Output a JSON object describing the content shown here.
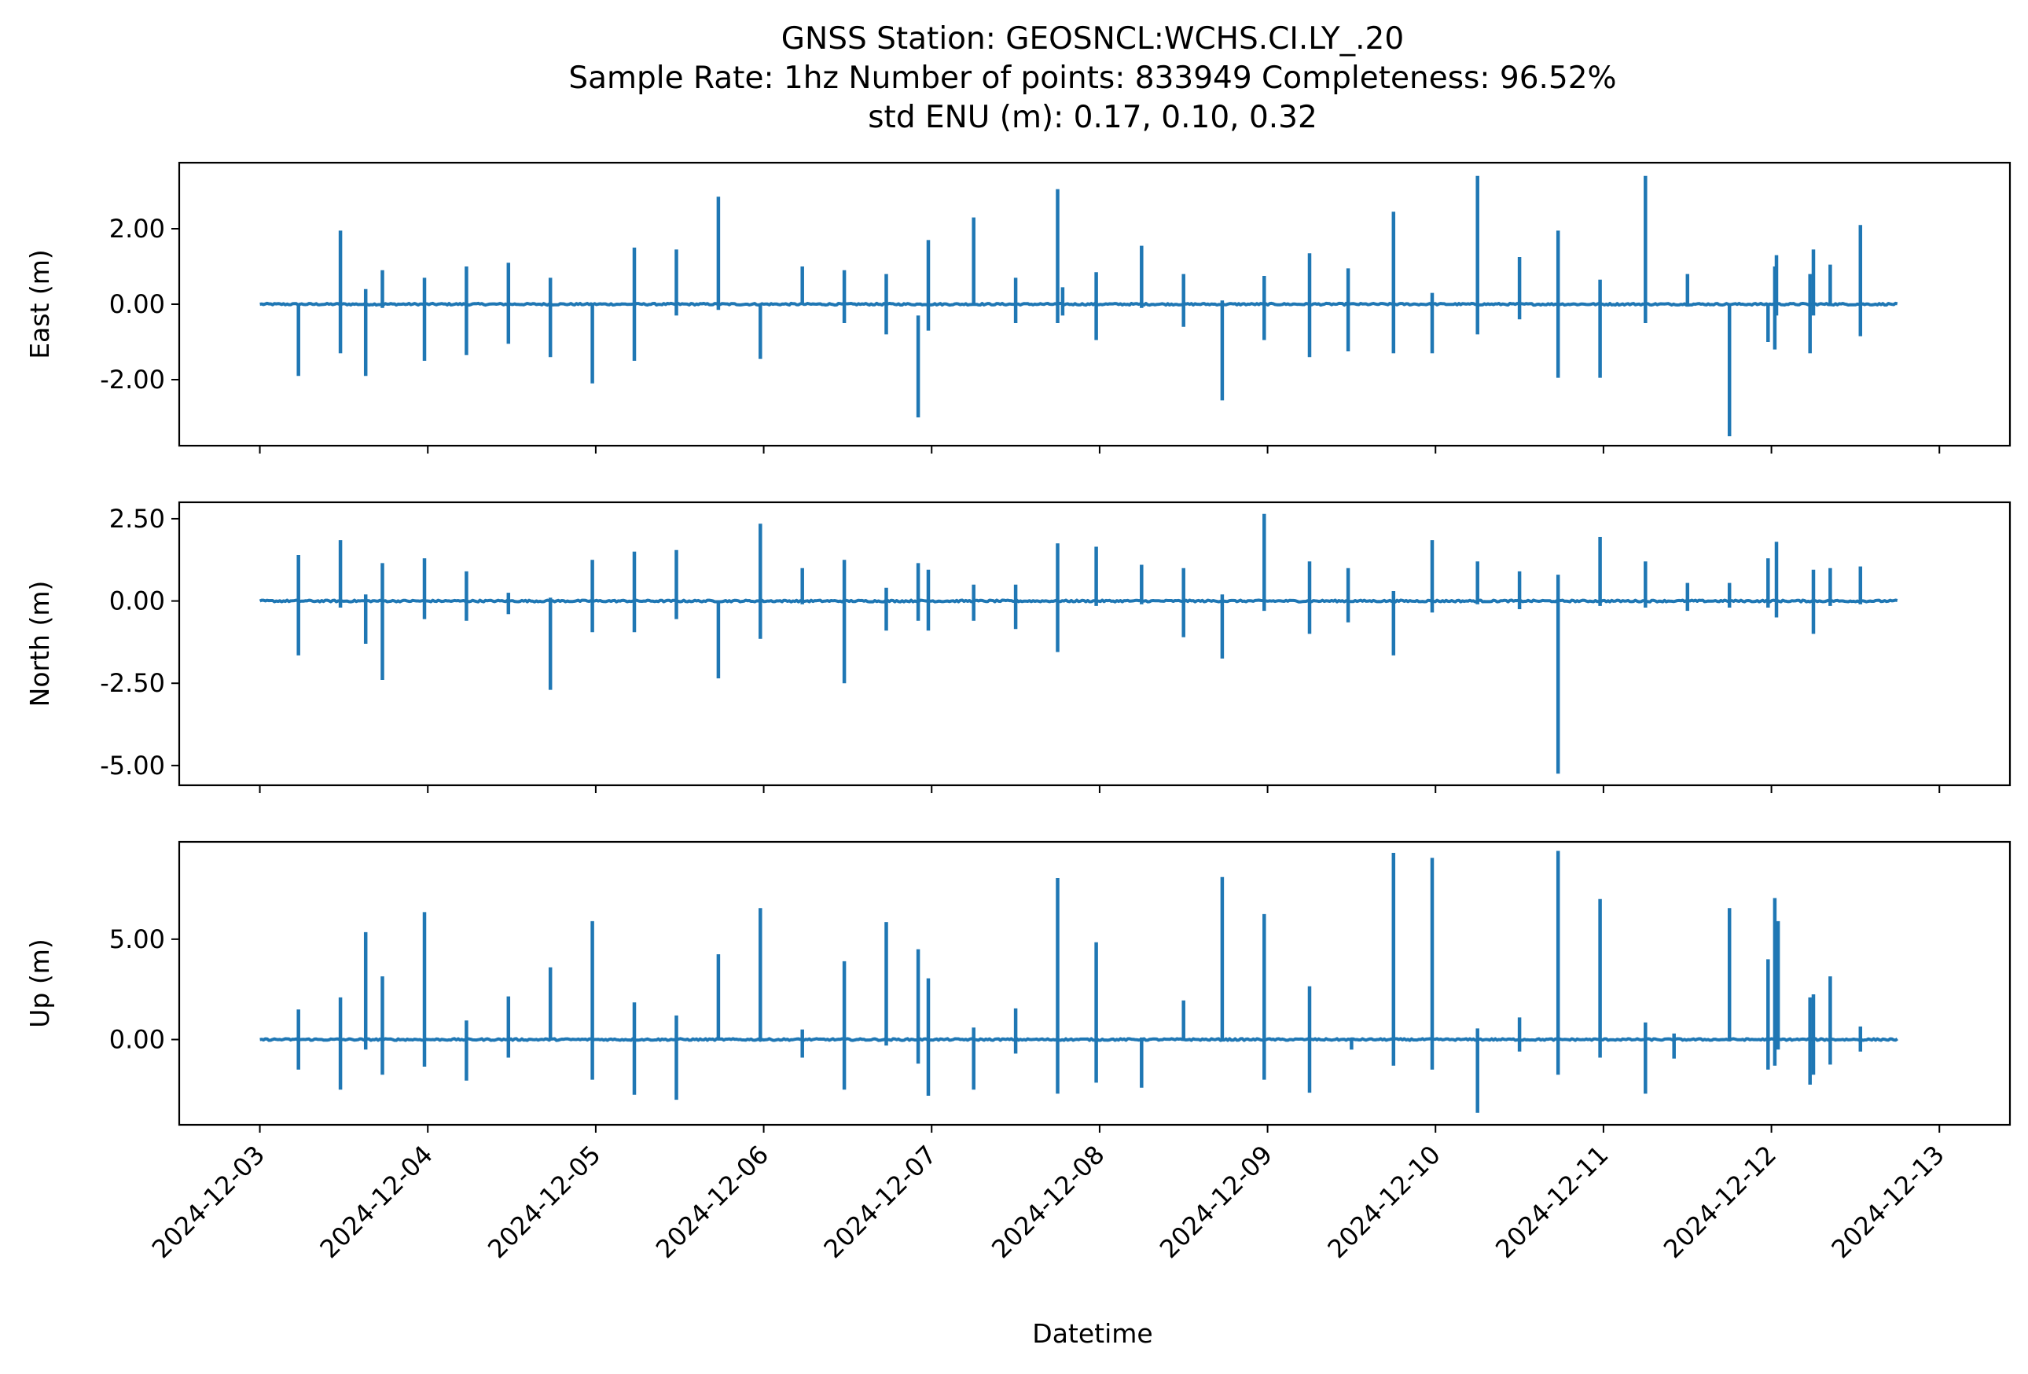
{
  "chart_data": {
    "type": "line",
    "title_lines": [
      "GNSS Station: GEOSNCL:WCHS.CI.LY_.20",
      "Sample Rate: 1hz   Number of points: 833949    Completeness:  96.52%",
      "std ENU (m):  0.17, 0.10, 0.32"
    ],
    "xlabel": "Datetime",
    "x_tick_labels": [
      "2024-12-03",
      "2024-12-04",
      "2024-12-05",
      "2024-12-06",
      "2024-12-07",
      "2024-12-08",
      "2024-12-09",
      "2024-12-10",
      "2024-12-11",
      "2024-12-12",
      "2024-12-13"
    ],
    "x_range_days": [
      -0.48,
      10.42
    ],
    "data_range_days": [
      0.0,
      9.75
    ],
    "line_color": "#1f77b4",
    "panels": [
      {
        "ylabel": "East (m)",
        "ylim": [
          -3.75,
          3.75
        ],
        "y_ticks": [
          2.0,
          0.0,
          -2.0
        ],
        "y_tick_labels": [
          "2.00",
          "0.00",
          "-2.00"
        ],
        "spikes": [
          [
            0.23,
            0.0,
            -1.9
          ],
          [
            0.48,
            1.95,
            -1.3
          ],
          [
            0.63,
            0.4,
            -1.9
          ],
          [
            0.73,
            0.9,
            -0.1
          ],
          [
            0.98,
            0.7,
            -1.5
          ],
          [
            1.23,
            1.0,
            -1.35
          ],
          [
            1.48,
            1.1,
            -1.05
          ],
          [
            1.73,
            0.7,
            -1.4
          ],
          [
            1.98,
            0.0,
            -2.1
          ],
          [
            2.23,
            1.5,
            -1.5
          ],
          [
            2.48,
            1.45,
            -0.3
          ],
          [
            2.73,
            2.85,
            -0.15
          ],
          [
            2.98,
            0.0,
            -1.45
          ],
          [
            3.23,
            1.0,
            0.0
          ],
          [
            3.48,
            0.9,
            -0.5
          ],
          [
            3.73,
            0.8,
            -0.8
          ],
          [
            3.92,
            -0.3,
            -3.0
          ],
          [
            3.98,
            1.7,
            -0.7
          ],
          [
            4.25,
            2.3,
            0.0
          ],
          [
            4.5,
            0.7,
            -0.5
          ],
          [
            4.75,
            3.05,
            -0.5
          ],
          [
            4.78,
            0.45,
            -0.3
          ],
          [
            4.98,
            0.85,
            -0.95
          ],
          [
            5.25,
            1.55,
            -0.1
          ],
          [
            5.5,
            0.8,
            -0.6
          ],
          [
            5.73,
            0.1,
            -2.55
          ],
          [
            5.98,
            0.75,
            -0.95
          ],
          [
            6.25,
            1.35,
            -1.4
          ],
          [
            6.48,
            0.95,
            -1.25
          ],
          [
            6.75,
            2.45,
            -1.3
          ],
          [
            6.98,
            0.3,
            -1.3
          ],
          [
            7.25,
            3.4,
            -0.8
          ],
          [
            7.5,
            1.25,
            -0.4
          ],
          [
            7.73,
            1.95,
            -1.95
          ],
          [
            7.98,
            0.65,
            -1.95
          ],
          [
            8.25,
            3.4,
            -0.5
          ],
          [
            8.5,
            0.8,
            0.0
          ],
          [
            8.75,
            0.0,
            -3.5
          ],
          [
            8.98,
            0.0,
            -1.0
          ],
          [
            9.02,
            1.0,
            -1.2
          ],
          [
            9.03,
            1.3,
            -0.3
          ],
          [
            9.23,
            0.8,
            -1.3
          ],
          [
            9.25,
            1.45,
            -0.3
          ],
          [
            9.35,
            1.05,
            0.0
          ],
          [
            9.53,
            2.1,
            -0.85
          ]
        ]
      },
      {
        "ylabel": "North (m)",
        "ylim": [
          -5.6,
          3.0
        ],
        "y_ticks": [
          2.5,
          0.0,
          -2.5,
          -5.0
        ],
        "y_tick_labels": [
          "2.50",
          "0.00",
          "-2.50",
          "-5.00"
        ],
        "spikes": [
          [
            0.23,
            1.4,
            -1.65
          ],
          [
            0.48,
            1.85,
            -0.2
          ],
          [
            0.63,
            0.2,
            -1.3
          ],
          [
            0.73,
            1.15,
            -2.4
          ],
          [
            0.98,
            1.3,
            -0.55
          ],
          [
            1.23,
            0.9,
            -0.6
          ],
          [
            1.48,
            0.25,
            -0.4
          ],
          [
            1.73,
            0.1,
            -2.7
          ],
          [
            1.98,
            1.25,
            -0.95
          ],
          [
            2.23,
            1.5,
            -0.95
          ],
          [
            2.48,
            1.55,
            -0.55
          ],
          [
            2.73,
            0.0,
            -2.35
          ],
          [
            2.98,
            2.35,
            -1.15
          ],
          [
            3.23,
            1.0,
            -0.1
          ],
          [
            3.48,
            1.25,
            -2.5
          ],
          [
            3.73,
            0.4,
            -0.9
          ],
          [
            3.92,
            1.15,
            -0.6
          ],
          [
            3.98,
            0.95,
            -0.9
          ],
          [
            4.25,
            0.5,
            -0.6
          ],
          [
            4.5,
            0.5,
            -0.85
          ],
          [
            4.75,
            1.75,
            -1.55
          ],
          [
            4.98,
            1.65,
            -0.15
          ],
          [
            5.25,
            1.1,
            -0.1
          ],
          [
            5.5,
            1.0,
            -1.1
          ],
          [
            5.73,
            0.2,
            -1.75
          ],
          [
            5.98,
            2.65,
            -0.3
          ],
          [
            6.25,
            1.2,
            -1.0
          ],
          [
            6.48,
            1.0,
            -0.65
          ],
          [
            6.75,
            0.3,
            -1.65
          ],
          [
            6.98,
            1.85,
            -0.35
          ],
          [
            7.25,
            1.2,
            -0.1
          ],
          [
            7.5,
            0.9,
            -0.25
          ],
          [
            7.73,
            0.8,
            -5.25
          ],
          [
            7.98,
            1.95,
            -0.15
          ],
          [
            8.25,
            1.2,
            -0.2
          ],
          [
            8.5,
            0.55,
            -0.3
          ],
          [
            8.75,
            0.55,
            -0.2
          ],
          [
            8.98,
            1.3,
            -0.2
          ],
          [
            9.03,
            1.8,
            -0.5
          ],
          [
            9.25,
            0.95,
            -1.0
          ],
          [
            9.35,
            1.0,
            -0.15
          ],
          [
            9.53,
            1.05,
            -0.1
          ]
        ]
      },
      {
        "ylabel": "Up (m)",
        "ylim": [
          -4.25,
          9.85
        ],
        "y_ticks": [
          5.0,
          0.0
        ],
        "y_tick_labels": [
          "5.00",
          "0.00"
        ],
        "spikes": [
          [
            0.23,
            1.5,
            -1.5
          ],
          [
            0.48,
            2.1,
            -2.5
          ],
          [
            0.63,
            5.35,
            -0.5
          ],
          [
            0.73,
            3.15,
            -1.75
          ],
          [
            0.98,
            6.35,
            -1.35
          ],
          [
            1.23,
            0.95,
            -2.05
          ],
          [
            1.48,
            2.15,
            -0.9
          ],
          [
            1.73,
            3.6,
            0.0
          ],
          [
            1.98,
            5.9,
            -2.0
          ],
          [
            2.23,
            1.85,
            -2.75
          ],
          [
            2.48,
            1.2,
            -3.0
          ],
          [
            2.73,
            4.25,
            0.0
          ],
          [
            2.98,
            6.55,
            0.0
          ],
          [
            3.23,
            0.5,
            -0.9
          ],
          [
            3.48,
            3.9,
            -2.5
          ],
          [
            3.73,
            5.85,
            -0.3
          ],
          [
            3.92,
            4.5,
            -1.2
          ],
          [
            3.98,
            3.05,
            -2.8
          ],
          [
            4.25,
            0.6,
            -2.5
          ],
          [
            4.5,
            1.55,
            -0.7
          ],
          [
            4.75,
            8.05,
            -2.7
          ],
          [
            4.98,
            4.85,
            -2.15
          ],
          [
            5.25,
            0.1,
            -2.4
          ],
          [
            5.5,
            1.95,
            0.0
          ],
          [
            5.73,
            8.1,
            0.0
          ],
          [
            5.98,
            6.25,
            -2.0
          ],
          [
            6.25,
            2.65,
            -2.65
          ],
          [
            6.5,
            0.0,
            -0.5
          ],
          [
            6.75,
            9.3,
            -1.3
          ],
          [
            6.98,
            9.05,
            -1.5
          ],
          [
            7.25,
            0.55,
            -3.65
          ],
          [
            7.5,
            1.1,
            -0.6
          ],
          [
            7.73,
            9.4,
            -1.75
          ],
          [
            7.98,
            7.0,
            -0.9
          ],
          [
            8.25,
            0.85,
            -2.7
          ],
          [
            8.42,
            0.3,
            -0.95
          ],
          [
            8.75,
            6.55,
            0.0
          ],
          [
            8.98,
            4.0,
            -1.5
          ],
          [
            9.02,
            7.05,
            -1.3
          ],
          [
            9.04,
            5.9,
            -0.5
          ],
          [
            9.23,
            2.1,
            -2.25
          ],
          [
            9.25,
            2.25,
            -1.75
          ],
          [
            9.35,
            3.15,
            -1.25
          ],
          [
            9.53,
            0.65,
            -0.6
          ]
        ]
      }
    ]
  }
}
